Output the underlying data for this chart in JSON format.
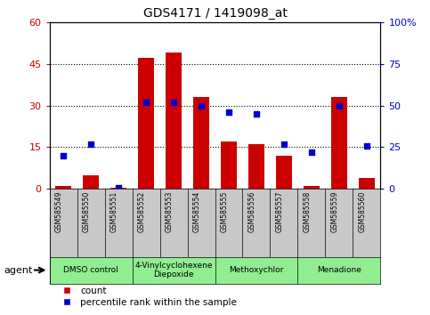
{
  "title": "GDS4171 / 1419098_at",
  "samples": [
    "GSM585549",
    "GSM585550",
    "GSM585551",
    "GSM585552",
    "GSM585553",
    "GSM585554",
    "GSM585555",
    "GSM585556",
    "GSM585557",
    "GSM585558",
    "GSM585559",
    "GSM585560"
  ],
  "counts": [
    1,
    5,
    0.5,
    47,
    49,
    33,
    17,
    16,
    12,
    1,
    33,
    4
  ],
  "percentile_ranks": [
    20,
    27,
    1,
    52,
    52,
    50,
    46,
    45,
    27,
    22,
    50,
    26
  ],
  "ylim_left": [
    0,
    60
  ],
  "ylim_right": [
    0,
    100
  ],
  "yticks_left": [
    0,
    15,
    30,
    45,
    60
  ],
  "yticks_right": [
    0,
    25,
    50,
    75,
    100
  ],
  "bar_color": "#cc0000",
  "dot_color": "#0000cc",
  "agent_groups": [
    {
      "label": "DMSO control",
      "start": 0,
      "end": 3
    },
    {
      "label": "4-Vinylcyclohexene\nDiepoxide",
      "start": 3,
      "end": 6
    },
    {
      "label": "Methoxychlor",
      "start": 6,
      "end": 9
    },
    {
      "label": "Menadione",
      "start": 9,
      "end": 12
    }
  ],
  "agent_label": "agent",
  "legend_count_label": "count",
  "legend_pct_label": "percentile rank within the sample",
  "tick_label_color_left": "#cc0000",
  "tick_label_color_right": "#0000cc",
  "bg_sample_row": "#c8c8c8",
  "agent_row_color": "#90ee90"
}
